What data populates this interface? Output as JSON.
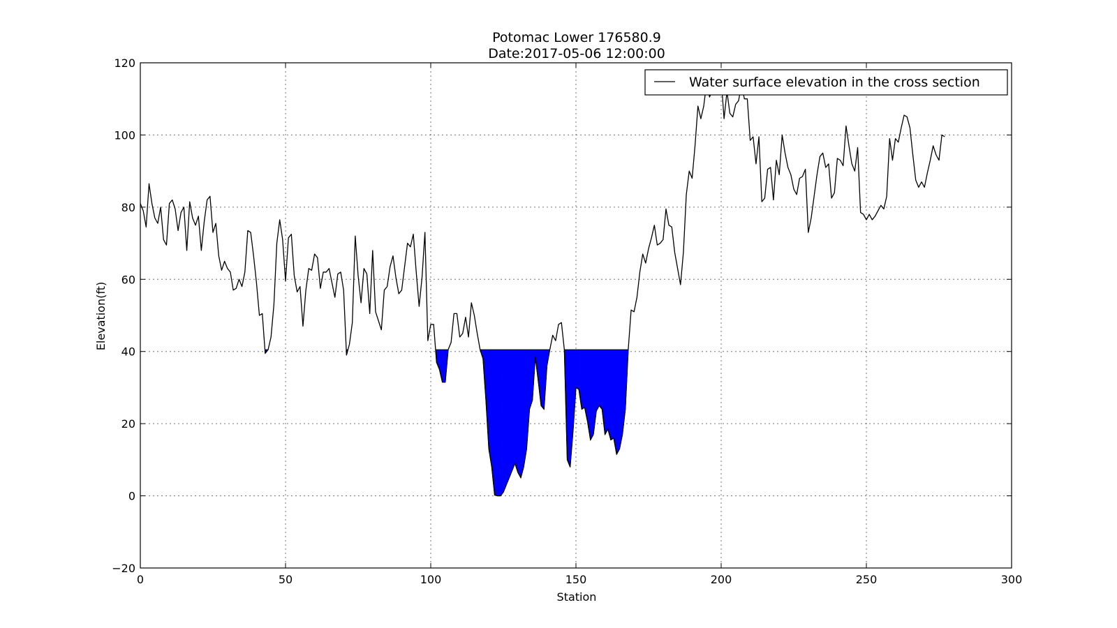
{
  "chart_data": {
    "type": "line",
    "title": "Potomac Lower 176580.9",
    "subtitle": "Date:2017-05-06 12:00:00",
    "xlabel": "Station",
    "ylabel": "Elevation(ft)",
    "xlim": [
      0,
      300
    ],
    "ylim": [
      -20,
      120
    ],
    "xticks": [
      0,
      50,
      100,
      150,
      200,
      250,
      300
    ],
    "yticks": [
      -20,
      0,
      20,
      40,
      60,
      80,
      100,
      120
    ],
    "xtick_labels": [
      "0",
      "50",
      "100",
      "150",
      "200",
      "250",
      "300"
    ],
    "ytick_labels": [
      "−20",
      "0",
      "20",
      "40",
      "60",
      "80",
      "100",
      "120"
    ],
    "grid": true,
    "legend_position": "top-right",
    "water_surface_elevation": 40.5,
    "colors": {
      "line": "#000000",
      "fill": "#0000ff",
      "background": "#ffffff"
    },
    "series": [
      {
        "name": "Water surface elevation in the cross section",
        "x": [
          0,
          1,
          2,
          3,
          4,
          5,
          6,
          7,
          8,
          9,
          10,
          11,
          12,
          13,
          14,
          15,
          16,
          17,
          18,
          19,
          20,
          21,
          22,
          23,
          24,
          25,
          26,
          27,
          28,
          29,
          30,
          31,
          32,
          33,
          34,
          35,
          36,
          37,
          38,
          39,
          40,
          41,
          42,
          43,
          44,
          45,
          46,
          47,
          48,
          49,
          50,
          51,
          52,
          53,
          54,
          55,
          56,
          57,
          58,
          59,
          60,
          61,
          62,
          63,
          64,
          65,
          66,
          67,
          68,
          69,
          70,
          71,
          72,
          73,
          74,
          75,
          76,
          77,
          78,
          79,
          80,
          81,
          82,
          83,
          84,
          85,
          86,
          87,
          88,
          89,
          90,
          91,
          92,
          93,
          94,
          95,
          96,
          97,
          98,
          99,
          100,
          101,
          102,
          103,
          104,
          105,
          106,
          107,
          108,
          109,
          110,
          111,
          112,
          113,
          114,
          115,
          116,
          117,
          118,
          119,
          120,
          121,
          122,
          123,
          124,
          125,
          126,
          127,
          128,
          129,
          130,
          131,
          132,
          133,
          134,
          135,
          136,
          137,
          138,
          139,
          140,
          141,
          142,
          143,
          144,
          145,
          146,
          147,
          148,
          149,
          150,
          151,
          152,
          153,
          154,
          155,
          156,
          157,
          158,
          159,
          160,
          161,
          162,
          163,
          164,
          165,
          166,
          167,
          168,
          169,
          170,
          171,
          172,
          173,
          174,
          175,
          176,
          177,
          178,
          179,
          180,
          181,
          182,
          183,
          184,
          185,
          186,
          187,
          188,
          189,
          190,
          191,
          192,
          193,
          194,
          195,
          196,
          197,
          198,
          199,
          200,
          201,
          202,
          203,
          204,
          205,
          206,
          207,
          208,
          209,
          210,
          211,
          212,
          213,
          214,
          215,
          216,
          217,
          218,
          219,
          220,
          221,
          222,
          223,
          224,
          225,
          226,
          227,
          228,
          229,
          230,
          231,
          232,
          233,
          234,
          235,
          236,
          237,
          238,
          239,
          240,
          241,
          242,
          243,
          244,
          245,
          246,
          247,
          248,
          249,
          250,
          251,
          252,
          253,
          254,
          255,
          256,
          257,
          258,
          259,
          260,
          261,
          262,
          263,
          264,
          265,
          266,
          267,
          268,
          269,
          270,
          271,
          272,
          273,
          274,
          275,
          276,
          277
        ],
        "y": [
          81,
          79,
          74.5,
          86.5,
          81,
          77,
          75.5,
          80,
          71,
          69.5,
          81,
          82,
          79.5,
          73.5,
          78.5,
          80,
          68,
          81.5,
          77,
          75,
          77.5,
          68,
          76,
          82,
          83,
          73,
          75.5,
          66.5,
          62.5,
          65,
          63,
          62,
          57,
          57.5,
          60,
          58,
          62,
          73.5,
          73,
          66.5,
          59,
          50,
          50.5,
          39.5,
          40.5,
          44,
          53,
          70,
          76.5,
          71,
          59.5,
          71.5,
          72.5,
          61,
          56.5,
          58,
          47,
          57,
          63,
          62.5,
          67,
          66,
          57.5,
          62,
          62,
          63,
          59,
          55,
          61.5,
          62,
          57,
          39,
          42,
          48,
          72,
          61,
          53.5,
          63,
          61.5,
          50.5,
          68,
          51,
          48.5,
          46,
          57,
          58,
          63.5,
          66.5,
          60.5,
          56,
          57,
          63.5,
          70,
          69,
          72.5,
          62,
          52.5,
          60.5,
          73,
          43,
          47.5,
          47.5,
          37,
          35,
          31.5,
          31.5,
          40.5,
          42.5,
          50.5,
          50.5,
          44,
          45,
          49.5,
          44,
          53.5,
          50,
          45,
          40.5,
          38,
          26.5,
          13,
          8,
          0.2,
          0,
          0,
          1,
          3,
          5,
          7,
          9,
          6.5,
          5,
          8,
          13,
          24,
          26.5,
          38.5,
          32,
          25,
          24,
          36,
          40.5,
          44.5,
          43,
          47.5,
          48,
          40.5,
          10,
          8,
          18,
          30,
          29.5,
          24,
          24.5,
          20.5,
          15.5,
          17,
          23.5,
          25,
          24,
          17,
          18.5,
          15.5,
          16,
          11.5,
          13,
          17,
          24,
          40.5,
          51.5,
          51,
          55,
          62,
          67,
          64.5,
          68.5,
          71.5,
          75,
          69.5,
          70,
          71,
          79.5,
          75,
          74.5,
          67.5,
          63,
          58.5,
          67.5,
          83.5,
          90,
          88,
          97,
          108,
          104.5,
          108,
          114.5,
          110.5,
          112.5,
          117,
          112.5,
          115.5,
          104.5,
          112,
          106,
          105,
          108.5,
          109.5,
          114,
          110,
          110,
          98.5,
          99.5,
          92,
          99.5,
          81.5,
          82.5,
          90.5,
          91,
          82,
          93,
          89,
          100,
          95,
          91,
          89,
          85,
          83.5,
          88,
          88.5,
          90.5,
          73,
          77,
          83,
          89,
          94,
          95,
          91,
          92,
          82.5,
          84,
          93.5,
          93,
          91.5,
          102.5,
          97,
          92,
          90,
          96.5,
          78.5,
          78,
          76.5,
          78,
          76.5,
          77.5,
          79,
          80.5,
          79.5,
          83,
          99,
          93,
          99,
          98,
          102,
          105.5,
          105,
          102,
          94.5,
          87.5,
          85.5,
          87,
          85.5,
          89.5,
          93,
          97,
          94.5,
          93,
          100,
          99.5
        ]
      }
    ]
  }
}
